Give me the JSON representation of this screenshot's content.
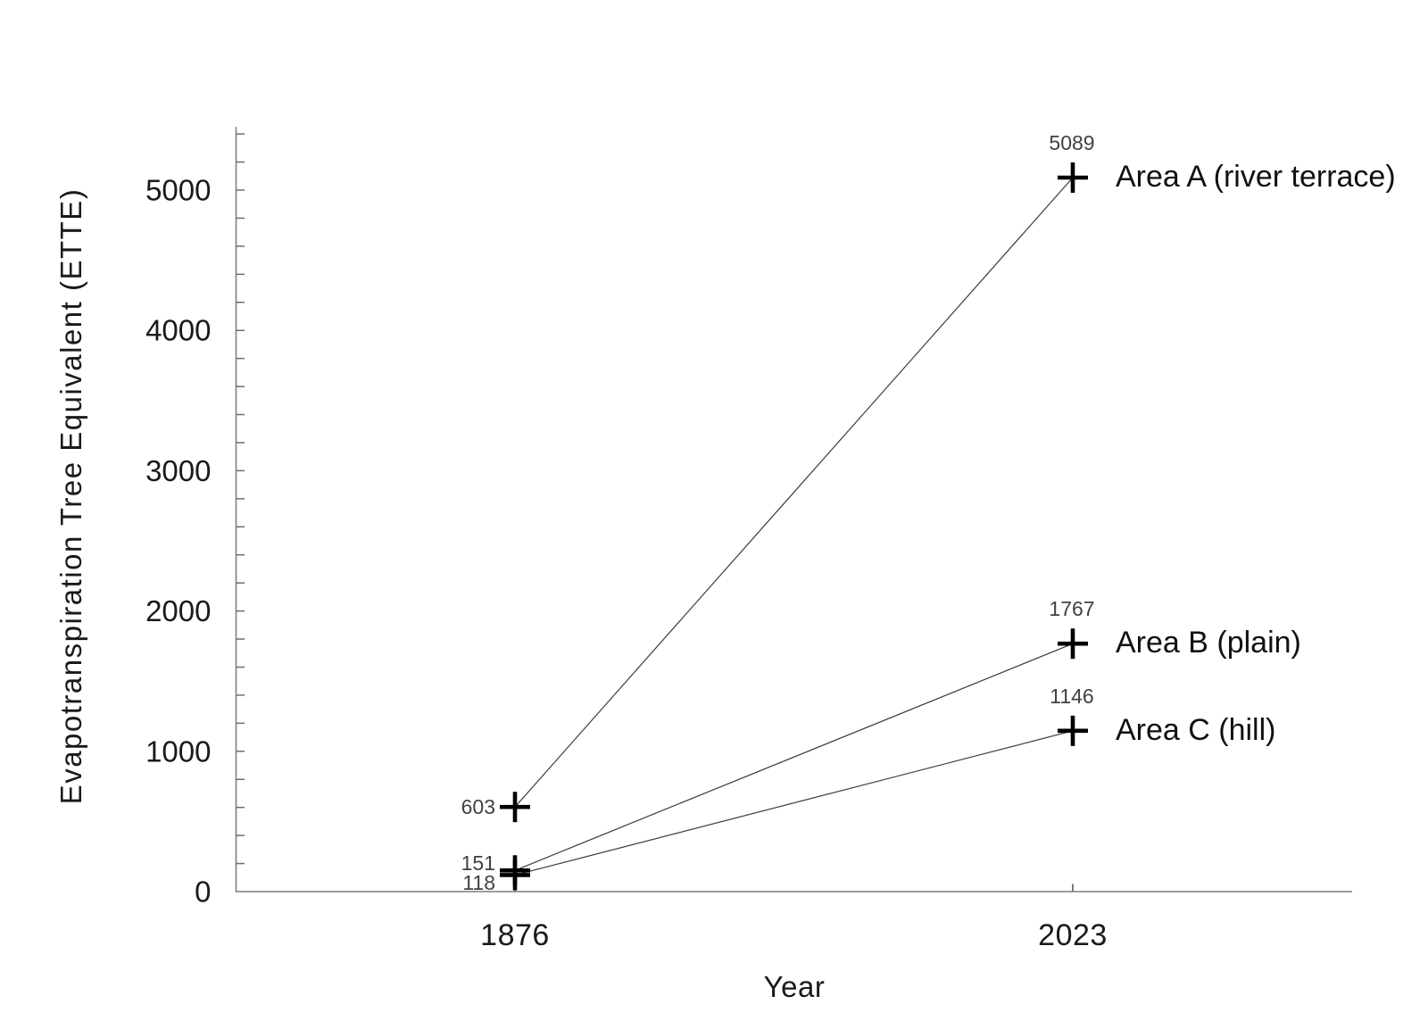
{
  "page": {
    "background_color": "#ffffff"
  },
  "chart_data": {
    "type": "line",
    "title": "",
    "xlabel": "Year",
    "ylabel": "Evapotranspiration Tree Equivalent (ETTE)",
    "categories": [
      "1876",
      "2023"
    ],
    "series": [
      {
        "name": "Area A (river terrace)",
        "values": [
          603,
          5089
        ]
      },
      {
        "name": "Area B (plain)",
        "values": [
          151,
          1767
        ]
      },
      {
        "name": "Area C (hill)",
        "values": [
          118,
          1146
        ]
      }
    ],
    "point_value_labels": [
      [
        "603",
        "5089"
      ],
      [
        "151",
        "1767"
      ],
      [
        "118",
        "1146"
      ]
    ],
    "ytick_labels": [
      "0",
      "1000",
      "2000",
      "3000",
      "4000",
      "5000"
    ],
    "ytick_label_values": [
      0,
      1000,
      2000,
      3000,
      4000,
      5000
    ],
    "ytick_minor_step": 200,
    "ytick_minor_max": 5400,
    "ylim": [
      0,
      5450
    ],
    "grid": false,
    "marker": "plus",
    "legend_position": "right-of-final-points",
    "colors": {
      "axis": "#7d7d7d",
      "tick": "#6e6e6e",
      "series_line": "#3c3c3c",
      "marker": "#000000",
      "tick_label": "#1a1a1a",
      "value_label": "#414141",
      "series_label": "#111111",
      "axis_title": "#1a1a1a"
    }
  }
}
